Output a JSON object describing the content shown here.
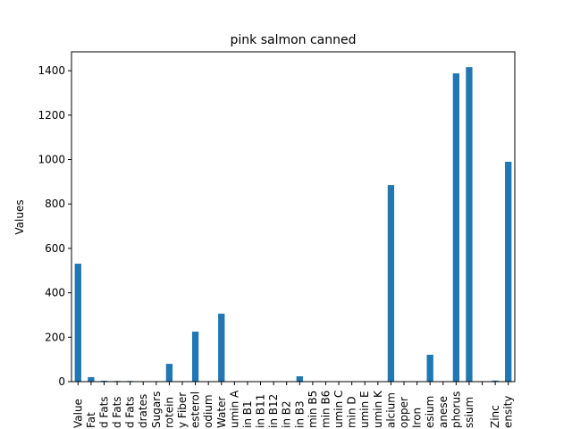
{
  "chart_data": {
    "type": "bar",
    "title": "pink salmon canned",
    "y_label": "Values",
    "categories": [
      "Value",
      "Fat",
      "d Fats",
      "d Fats",
      "d Fats",
      "drates",
      "Sugars",
      "rotein",
      "y Fiber",
      "esterol",
      "odium",
      "Water",
      "umin A",
      "in B1",
      "in B11",
      "in B12",
      "in B2",
      "in B3",
      "min B5",
      "min B6",
      "umin C",
      "min D",
      "umin E",
      "umin K",
      "alcium",
      "opper",
      "Iron",
      "esium",
      "anese",
      "phorus",
      "ssium",
      null,
      "Zinc",
      "ensity"
    ],
    "values": [
      531,
      20,
      4,
      3,
      3,
      0,
      0,
      80,
      0,
      225,
      0,
      306,
      0,
      0,
      0,
      0,
      0,
      24,
      0,
      0,
      0,
      0,
      0,
      0,
      885,
      0,
      0,
      121,
      0,
      1388,
      1416,
      0,
      5,
      990
    ],
    "color": "#1f77b4",
    "ylim": [
      0,
      1485
    ],
    "yticks": [
      0,
      200,
      400,
      600,
      800,
      1000,
      1200,
      1400
    ],
    "grid": false
  }
}
